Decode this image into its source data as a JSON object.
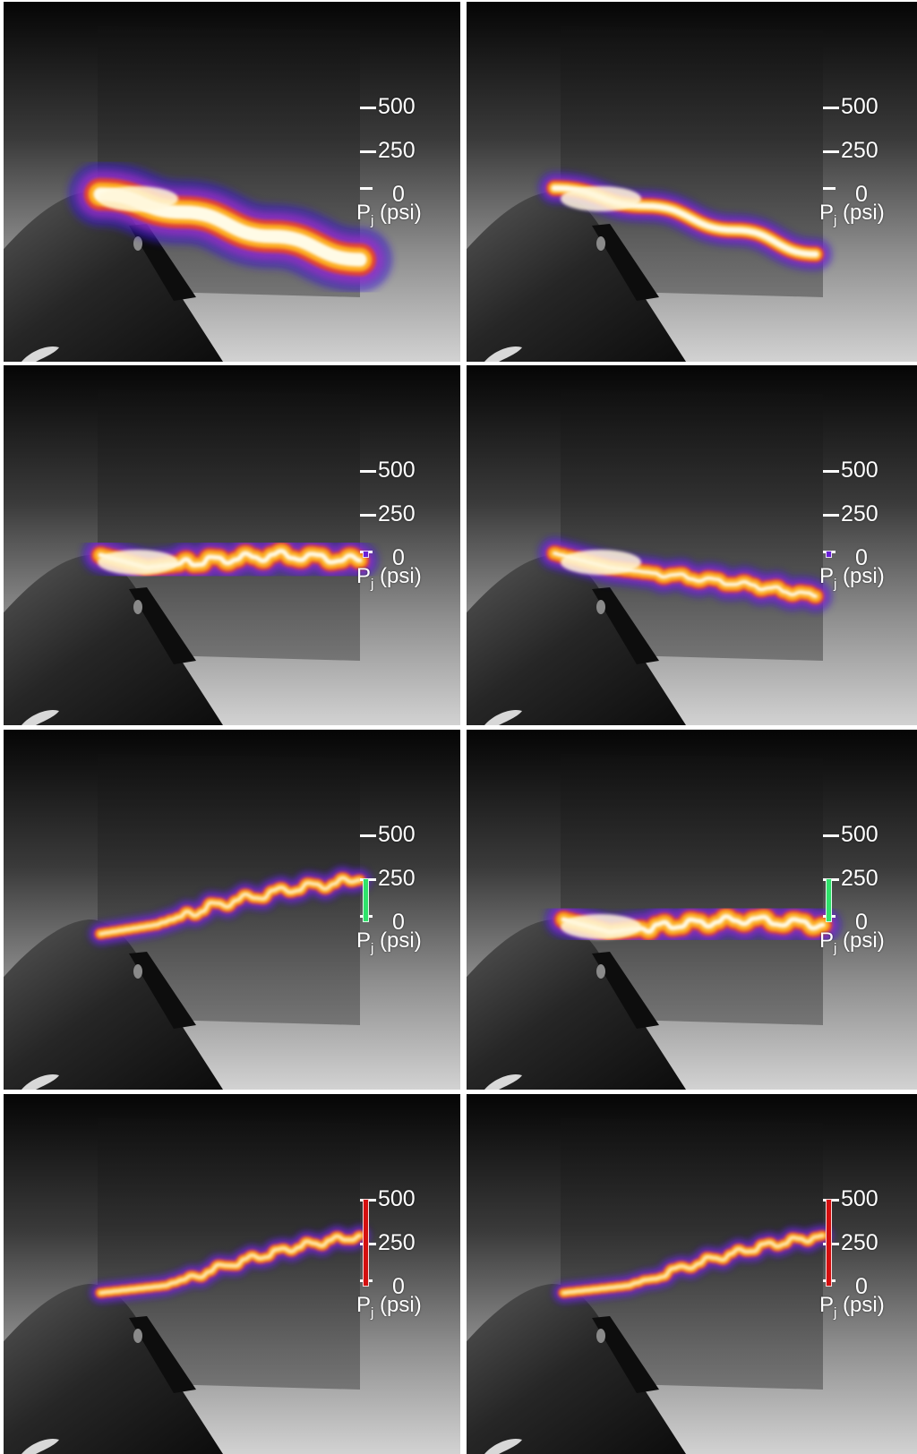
{
  "legend": {
    "ticks": [
      "500",
      "250",
      "0"
    ],
    "unit_symbol": "P",
    "unit_subscript": "j",
    "unit_text": "(psi)",
    "scale_max": 500
  },
  "panels": [
    {
      "name": "panel-row1-left",
      "pressure": 0,
      "bar_color": "#ffffff",
      "plume": "steady-wide"
    },
    {
      "name": "panel-row1-right",
      "pressure": 0,
      "bar_color": "#ffffff",
      "plume": "steady-narrow"
    },
    {
      "name": "panel-row2-left",
      "pressure": 20,
      "bar_color": "#6a1fd6",
      "plume": "flat-wavy"
    },
    {
      "name": "panel-row2-right",
      "pressure": 20,
      "bar_color": "#6a1fd6",
      "plume": "flat-down"
    },
    {
      "name": "panel-row3-left",
      "pressure": 250,
      "bar_color": "#2fe36b",
      "plume": "rising"
    },
    {
      "name": "panel-row3-right",
      "pressure": 250,
      "bar_color": "#2fe36b",
      "plume": "flat-wavy"
    },
    {
      "name": "panel-row4-left",
      "pressure": 500,
      "bar_color": "#d40f0f",
      "plume": "rising-mid"
    },
    {
      "name": "panel-row4-right",
      "pressure": 500,
      "bar_color": "#d40f0f",
      "plume": "rising-mid"
    }
  ]
}
